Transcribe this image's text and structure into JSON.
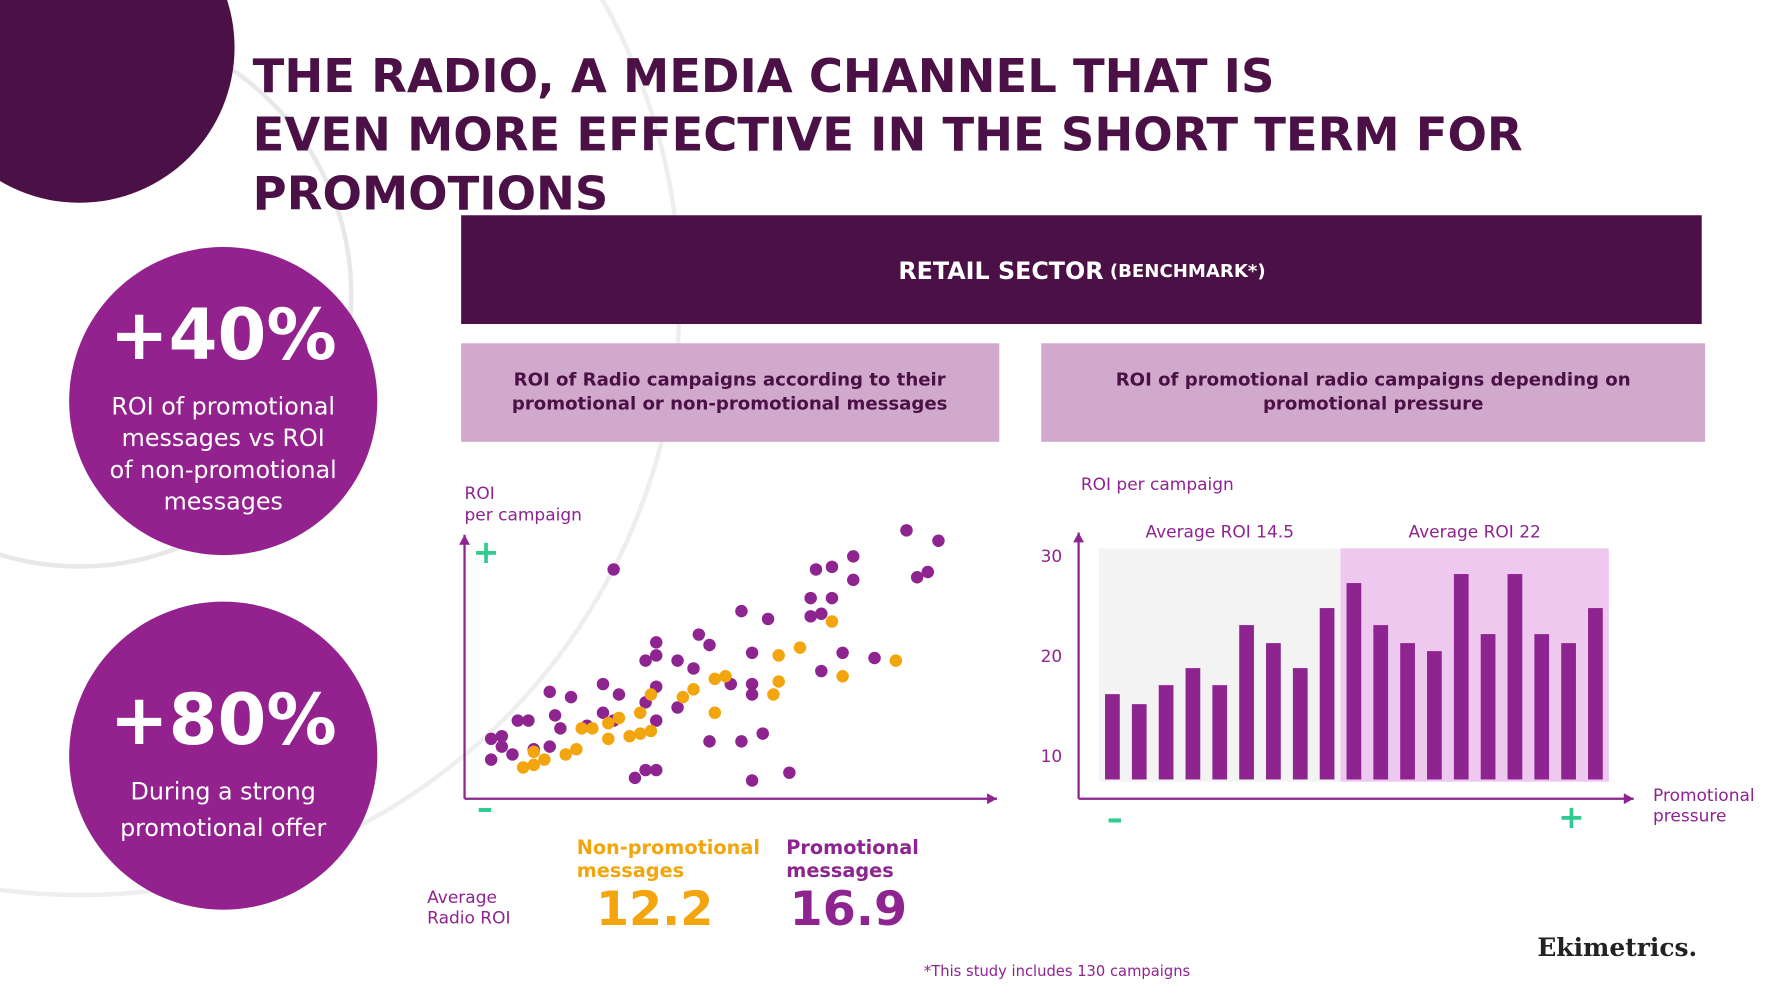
{
  "header": {
    "title_lines": [
      "THE RADIO, A MEDIA CHANNEL THAT IS",
      "EVEN MORE EFFECTIVE IN THE SHORT TERM FOR",
      "PROMOTIONS"
    ]
  },
  "stats": [
    {
      "value": "+40%",
      "lines": [
        "ROI of promotional",
        "messages vs ROI",
        "of non-promotional",
        "messages"
      ]
    },
    {
      "value": "+80%",
      "lines": [
        "During a strong",
        "promotional offer"
      ]
    }
  ],
  "banner": {
    "title": "RETAIL SECTOR",
    "note": "(BENCHMARK*)"
  },
  "chart_data": [
    {
      "type": "scatter",
      "title_lines": [
        "ROI of Radio campaigns according to their",
        "promotional or non-promotional messages"
      ],
      "y_label_lines": [
        "ROI",
        "per campaign"
      ],
      "axis_markers": {
        "high": "+",
        "low": "–"
      },
      "xlim": [
        0,
        100
      ],
      "ylim": [
        0,
        110
      ],
      "average_label": "Average Radio ROI",
      "series": [
        {
          "name": "Non-promotional messages",
          "color": "#f2a50c",
          "average": 12.2,
          "x": [
            69,
            59,
            63,
            71,
            81,
            59,
            58,
            47,
            49,
            43,
            41,
            47,
            35,
            33,
            29,
            27,
            24,
            22,
            27,
            31,
            33,
            35,
            21,
            19,
            15,
            13,
            11,
            13
          ],
          "values": [
            68,
            55,
            58,
            47,
            53,
            45,
            40,
            46,
            47,
            42,
            39,
            33,
            40,
            33,
            31,
            29,
            27,
            27,
            23,
            24,
            25,
            26,
            19,
            17,
            15,
            18,
            12,
            13
          ]
        },
        {
          "name": "Promotional messages",
          "color": "#8e2490",
          "average": 16.9,
          "x": [
            83,
            89,
            28,
            73,
            69,
            66,
            73,
            85,
            87,
            65,
            69,
            52,
            57,
            65,
            67,
            44,
            46,
            36,
            34,
            36,
            40,
            43,
            54,
            71,
            77,
            67,
            36,
            26,
            29,
            50,
            54,
            54,
            16,
            20,
            17,
            26,
            34,
            10,
            12,
            5,
            7,
            7,
            9,
            13,
            16,
            5,
            18,
            23,
            28,
            36,
            40,
            46,
            52,
            56,
            34,
            36,
            32,
            54,
            61
          ],
          "values": [
            103,
            99,
            88,
            93,
            89,
            88,
            84,
            85,
            87,
            77,
            77,
            72,
            69,
            70,
            71,
            63,
            59,
            60,
            53,
            55,
            53,
            50,
            56,
            56,
            54,
            49,
            43,
            44,
            40,
            44,
            44,
            40,
            41,
            39,
            32,
            33,
            37,
            30,
            30,
            23,
            24,
            20,
            17,
            19,
            20,
            15,
            27,
            28,
            30,
            30,
            35,
            22,
            22,
            25,
            11,
            11,
            8,
            7,
            10
          ]
        }
      ]
    },
    {
      "type": "bar",
      "title_lines": [
        "ROI of promotional radio campaigns depending on",
        "promotional pressure"
      ],
      "y_label": "ROI  per campaign",
      "x_label": "Promotional pressure",
      "axis_markers": {
        "low": "–",
        "high": "+"
      },
      "categories": [
        null,
        null,
        null,
        null,
        null,
        null,
        null,
        null,
        null,
        null,
        null,
        null,
        null,
        null,
        null,
        null,
        null,
        null,
        null
      ],
      "values": [
        16.3,
        15.3,
        17.2,
        18.9,
        17.2,
        23.2,
        21.4,
        18.9,
        24.9,
        27.4,
        23.2,
        21.4,
        20.6,
        28.3,
        22.3,
        28.3,
        22.3,
        21.4,
        24.9
      ],
      "color": "#8e2490",
      "ylim": [
        8,
        32
      ],
      "yticks": [
        10,
        20,
        30
      ],
      "groups": [
        {
          "label": "Average ROI",
          "average": 14.5,
          "color": "#f3f3f3"
        },
        {
          "label": "Average ROI",
          "average": 22,
          "color": "#efc8f0"
        }
      ]
    }
  ],
  "footnote": "*This study includes 130 campaigns",
  "logo": "Ekimetrics."
}
